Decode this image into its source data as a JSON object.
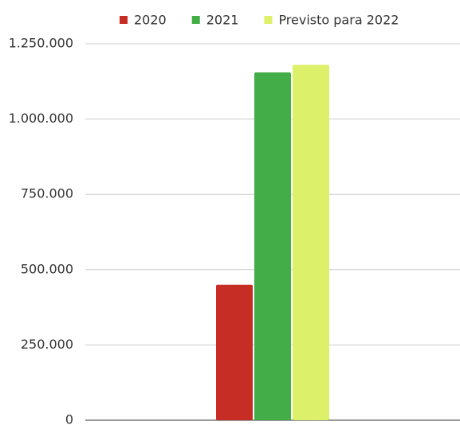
{
  "chart_data": {
    "type": "bar",
    "categories": [
      null
    ],
    "series": [
      {
        "name": "2020",
        "color": "#c62d25",
        "values": [
          450000
        ]
      },
      {
        "name": "2021",
        "color": "#43ad47",
        "values": [
          1155000
        ]
      },
      {
        "name": "Previsto para 2022",
        "color": "#dcf06a",
        "values": [
          1180000
        ]
      }
    ],
    "ylim": [
      0,
      1250000
    ],
    "yticks": [
      0,
      {
        "value": 250000,
        "label": "250.000"
      },
      {
        "value": 500000,
        "label": "500.000"
      },
      {
        "value": 750000,
        "label": "750.000"
      },
      {
        "value": 1000000,
        "label": "1.000.000"
      },
      {
        "value": 1250000,
        "label": "1.250.000"
      }
    ],
    "grid": true,
    "legend": "top"
  }
}
